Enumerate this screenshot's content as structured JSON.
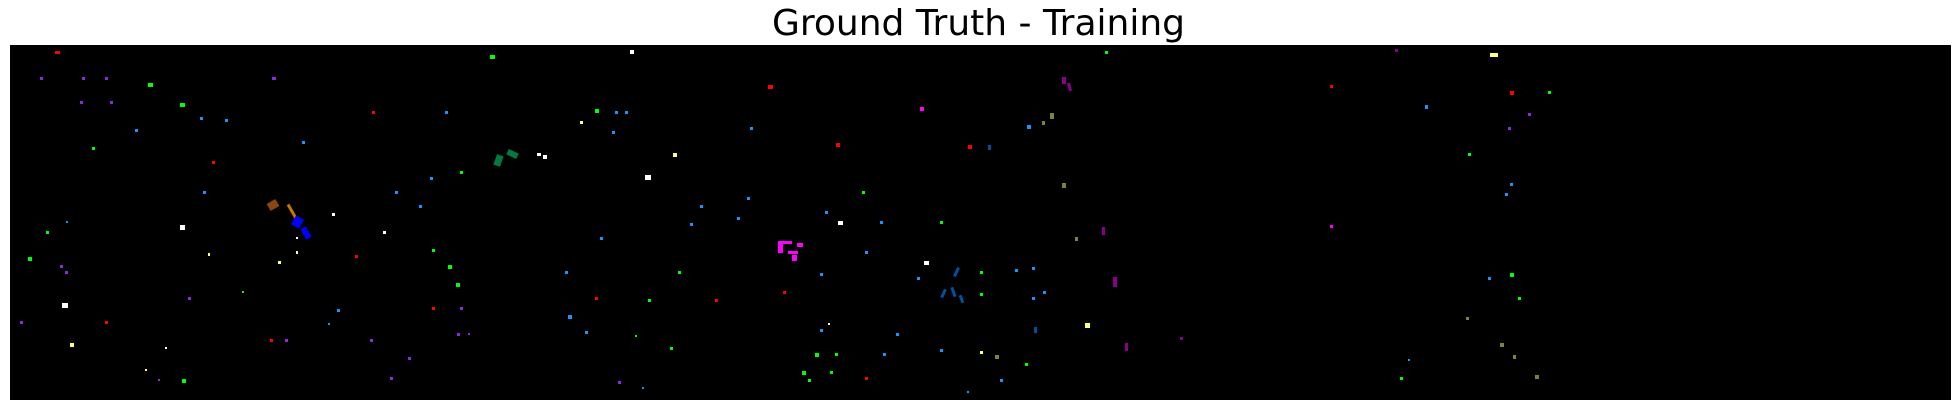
{
  "figure": {
    "title": "Ground Truth - Training"
  },
  "colors": {
    "background": "#ffffff",
    "map_background": "#000000",
    "class_palette": [
      "#ff0000",
      "#00ff00",
      "#0000ff",
      "#ffffff",
      "#8a2be2",
      "#1e90ff",
      "#ff00ff",
      "#007a3d",
      "#8b4513",
      "#ffff80",
      "#8b008b",
      "#808040",
      "#0050a0",
      "#c87800"
    ]
  }
}
